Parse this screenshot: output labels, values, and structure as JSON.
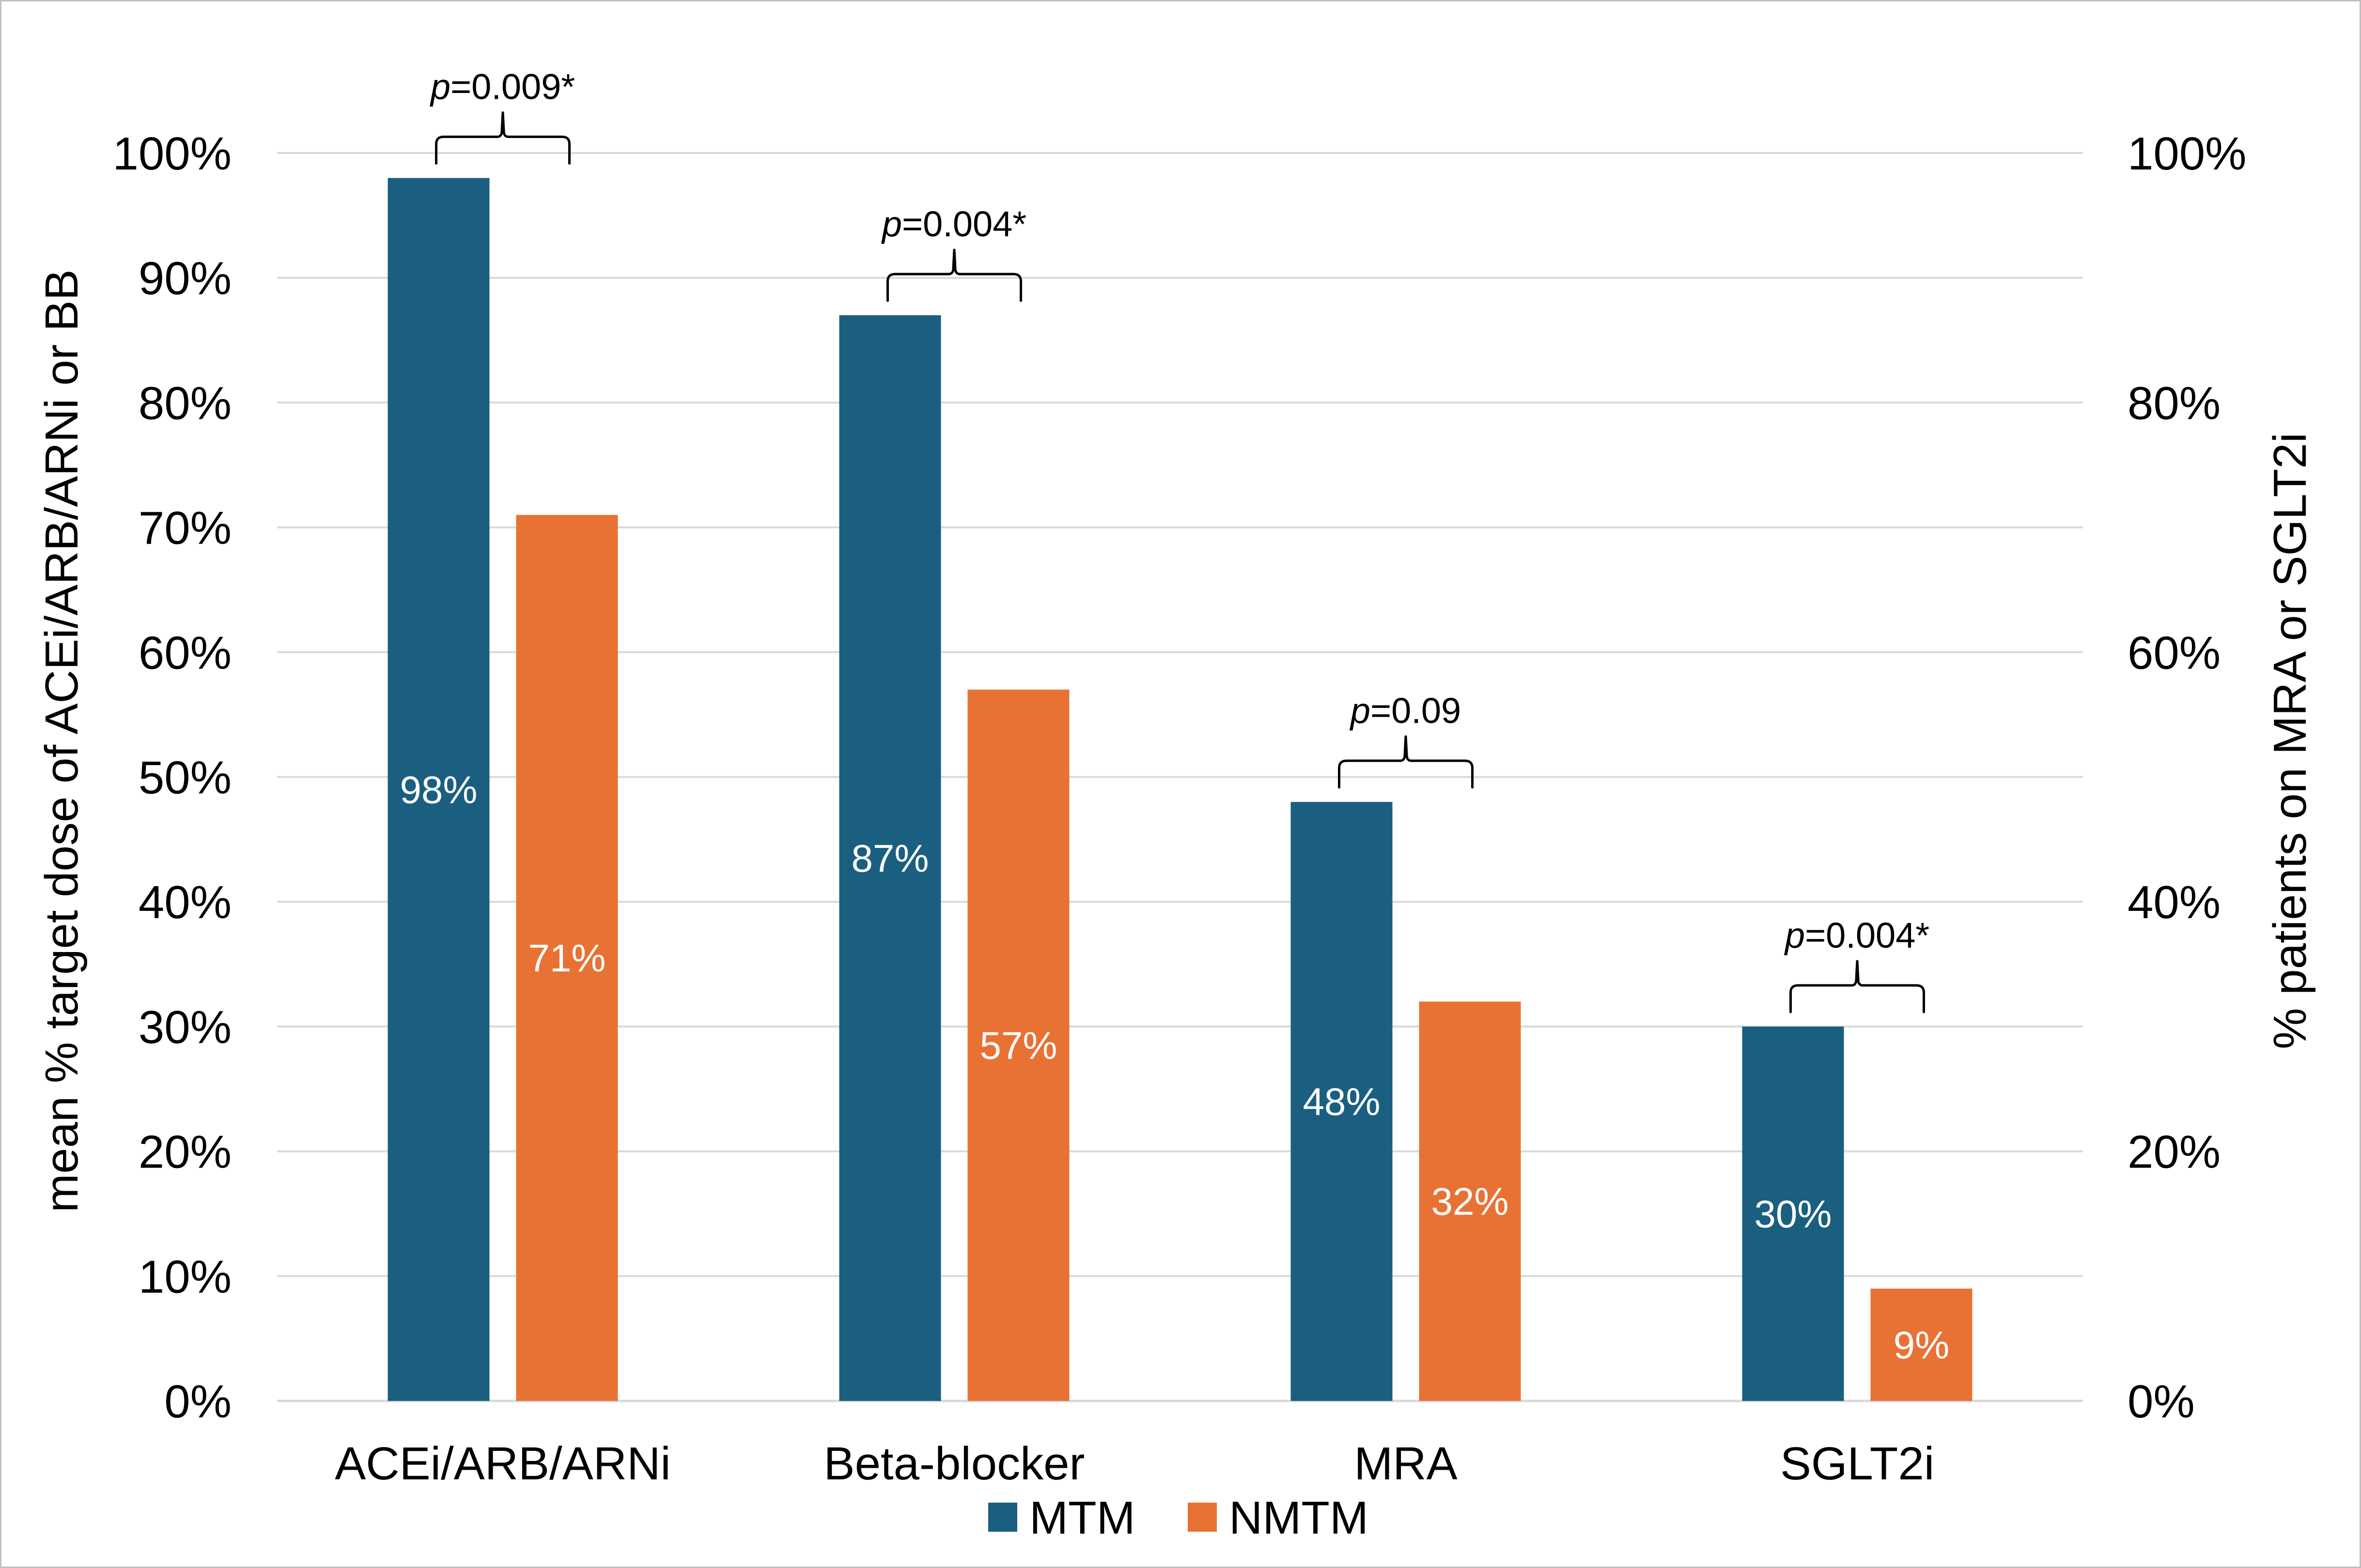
{
  "chart_data": {
    "type": "bar",
    "categories": [
      "ACEi/ARB/ARNi",
      "Beta-blocker",
      "MRA",
      "SGLT2i"
    ],
    "series": [
      {
        "name": "MTM",
        "values": [
          98,
          87,
          48,
          30
        ],
        "color": "#1a5f80",
        "labels": [
          "98%",
          "87%",
          "48%",
          "30%"
        ]
      },
      {
        "name": "NMTM",
        "values": [
          71,
          57,
          32,
          9
        ],
        "color": "#e87234",
        "labels": [
          "71%",
          "57%",
          "32%",
          "9%"
        ]
      }
    ],
    "ylim": [
      0,
      100
    ],
    "left_ticks": [
      "0%",
      "10%",
      "20%",
      "30%",
      "40%",
      "50%",
      "60%",
      "70%",
      "80%",
      "90%",
      "100%"
    ],
    "right_ticks": [
      "0%",
      "20%",
      "40%",
      "60%",
      "80%",
      "100%"
    ],
    "ylabel_left": "mean % target dose of ACEi/ARB/ARNi or BB",
    "ylabel_right": "% patients on MRA or SGLT2i",
    "xlabel": "",
    "legend_position": "bottom",
    "grid": true,
    "annotations": [
      {
        "category": "ACEi/ARB/ARNi",
        "p_symbol": "p",
        "p_rest": "=0.009*"
      },
      {
        "category": "Beta-blocker",
        "p_symbol": "p",
        "p_rest": "=0.004*"
      },
      {
        "category": "MRA",
        "p_symbol": "p",
        "p_rest": "=0.09"
      },
      {
        "category": "SGLT2i",
        "p_symbol": "p",
        "p_rest": "=0.004*"
      }
    ]
  }
}
